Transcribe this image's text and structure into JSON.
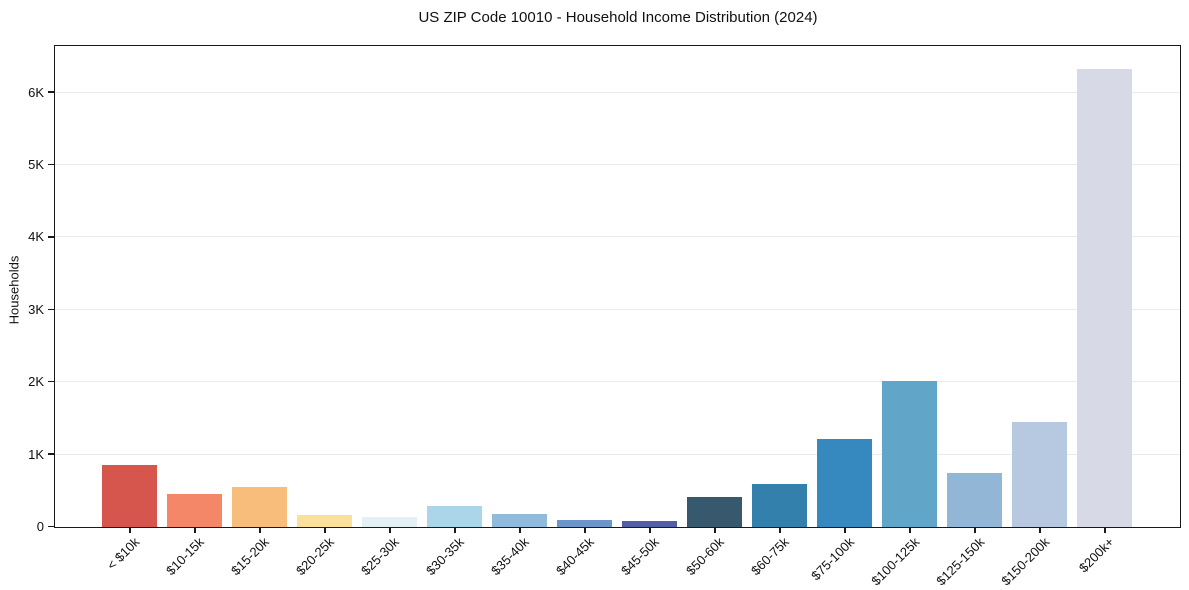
{
  "chart_data": {
    "type": "bar",
    "title": "US ZIP Code 10010 - Household Income Distribution (2024)",
    "xlabel": "",
    "ylabel": "Households",
    "categories": [
      "< $10k",
      "$10-15k",
      "$15-20k",
      "$20-25k",
      "$25-30k",
      "$30-35k",
      "$35-40k",
      "$40-45k",
      "$45-50k",
      "$50-60k",
      "$60-75k",
      "$75-100k",
      "$100-125k",
      "$125-150k",
      "$150-200k",
      "$200k+"
    ],
    "values": [
      850,
      460,
      550,
      160,
      140,
      285,
      185,
      90,
      85,
      410,
      590,
      1220,
      2020,
      740,
      1450,
      6320
    ],
    "bar_colors": [
      "#d6564e",
      "#f38768",
      "#f9bd7b",
      "#fae09b",
      "#e3f0f5",
      "#abd5e8",
      "#92badb",
      "#6b96c8",
      "#525fa5",
      "#36596e",
      "#3380ad",
      "#3589be",
      "#61a6c9",
      "#92b6d6",
      "#b7c9e0",
      "#d7d9e6"
    ],
    "ylim": [
      0,
      6630
    ],
    "yticks": [
      {
        "value": 0,
        "label": "0"
      },
      {
        "value": 1000,
        "label": "1K"
      },
      {
        "value": 2000,
        "label": "2K"
      },
      {
        "value": 3000,
        "label": "3K"
      },
      {
        "value": 4000,
        "label": "4K"
      },
      {
        "value": 5000,
        "label": "5K"
      },
      {
        "value": 6000,
        "label": "6K"
      }
    ],
    "grid": "horizontal",
    "legend": "none",
    "colors": {
      "background": "#ffffff",
      "grid": "#ebebeb",
      "spine": "#1a1a1a",
      "text": "#111111"
    }
  }
}
